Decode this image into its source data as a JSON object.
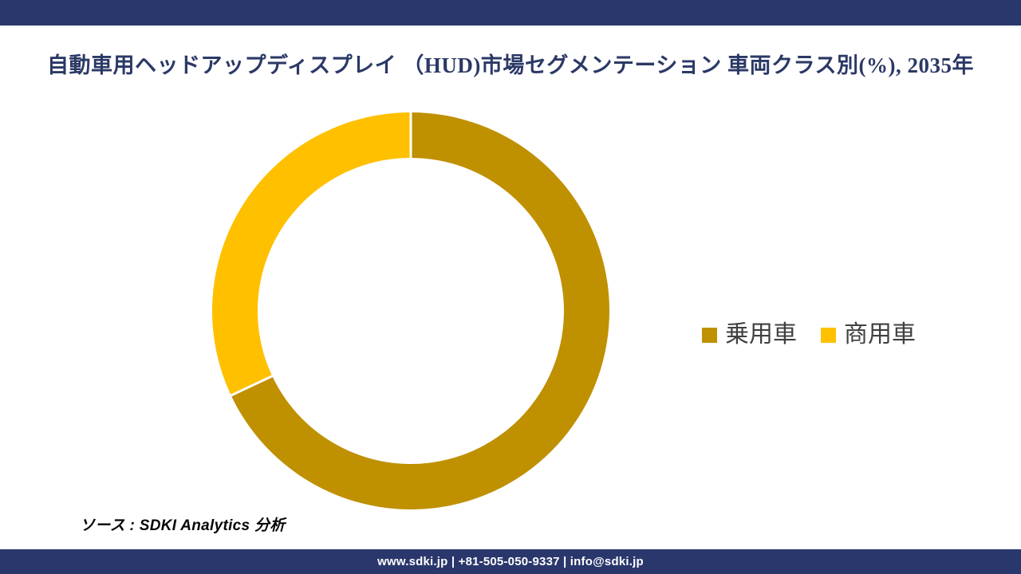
{
  "page": {
    "background": "#FFFFFF",
    "accent_color": "#2A376C"
  },
  "chart_data": {
    "type": "pie",
    "subtype": "donut",
    "title": "自動車用ヘッドアップディスプレイ （HUD)市場セグメンテーション 車両クラス別(%), 2035年",
    "categories": [
      "乗用車",
      "商用車"
    ],
    "values": [
      68,
      32
    ],
    "unit": "%",
    "colors": [
      "#BF9000",
      "#FFC000"
    ],
    "start_angle_deg": 0,
    "direction": "clockwise",
    "hole_ratio": 0.772,
    "separator_color": "#FFFFFF",
    "data_labels": "none",
    "legend_position": "right",
    "legend_text_color": "#404040",
    "title_color": "#2B3966"
  },
  "source": {
    "text": "ソース : SDKI Analytics 分析"
  },
  "footer": {
    "text": "www.sdki.jp | +81-505-050-9337 | info@sdki.jp",
    "background": "#2A376C",
    "text_color": "#FFFFFF"
  }
}
